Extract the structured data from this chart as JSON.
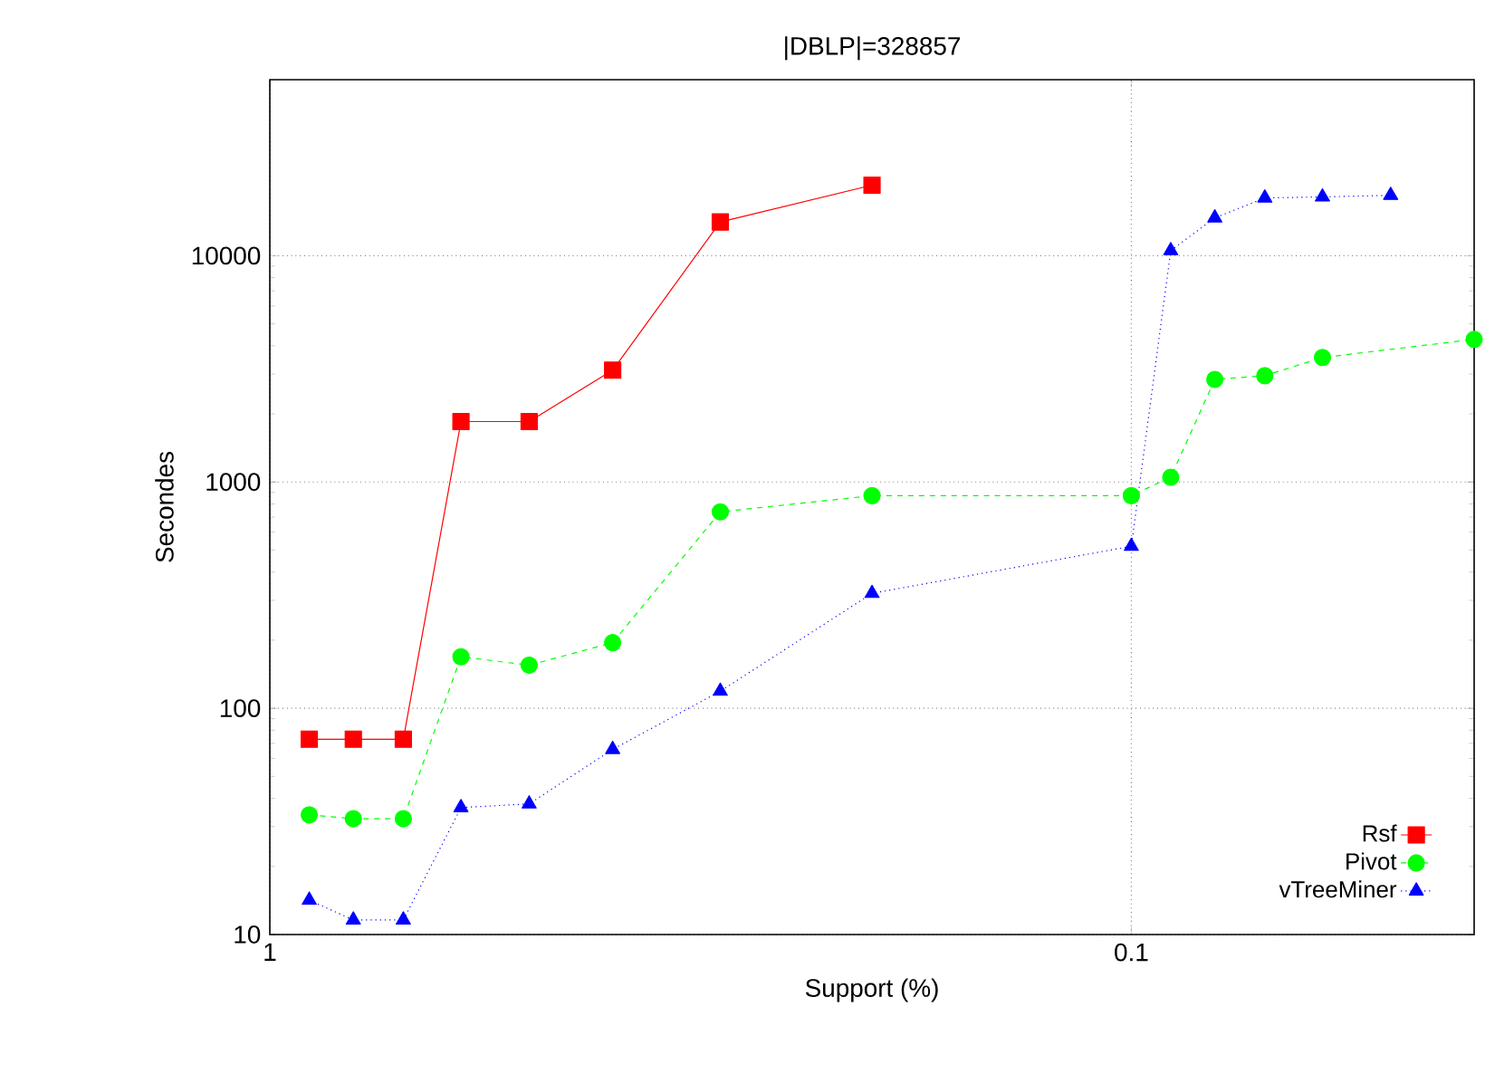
{
  "chart_data": {
    "type": "line",
    "title": "|DBLP|=328857",
    "xlabel": "Support (%)",
    "ylabel": "Secondes",
    "log": "xy",
    "grid": true,
    "legend": "bottom right",
    "xlim": [
      1,
      0.04
    ],
    "ylim": [
      10,
      60000
    ],
    "xticks": [
      1,
      0.1
    ],
    "yticks": [
      10,
      100,
      1000,
      10000
    ],
    "series": [
      {
        "name": "Rsf",
        "color": "#ff0000",
        "marker": "square",
        "line_style": "solid",
        "x": [
          0.9,
          0.8,
          0.7,
          0.6,
          0.5,
          0.4,
          0.3,
          0.2
        ],
        "values": [
          73,
          73,
          73,
          1850,
          1850,
          3120,
          14100,
          20500
        ]
      },
      {
        "name": "Pivot",
        "color": "#00ff00",
        "marker": "circle",
        "line_style": "dashed",
        "x": [
          0.9,
          0.8,
          0.7,
          0.6,
          0.5,
          0.4,
          0.3,
          0.2,
          0.1,
          0.09,
          0.08,
          0.07,
          0.06,
          0.04
        ],
        "values": [
          33.8,
          32.5,
          32.5,
          169,
          155,
          195,
          738,
          870,
          870,
          1050,
          2840,
          2950,
          3550,
          4270
        ]
      },
      {
        "name": "vTreeMiner",
        "color": "#0000ff",
        "marker": "triangle",
        "line_style": "dotted",
        "x": [
          0.9,
          0.8,
          0.7,
          0.6,
          0.5,
          0.4,
          0.3,
          0.2,
          0.1,
          0.09,
          0.08,
          0.07,
          0.06,
          0.05
        ],
        "values": [
          14.2,
          11.6,
          11.6,
          36.4,
          37.8,
          65.8,
          119,
          322,
          520,
          10540,
          14700,
          18000,
          18200,
          18500
        ]
      }
    ]
  }
}
